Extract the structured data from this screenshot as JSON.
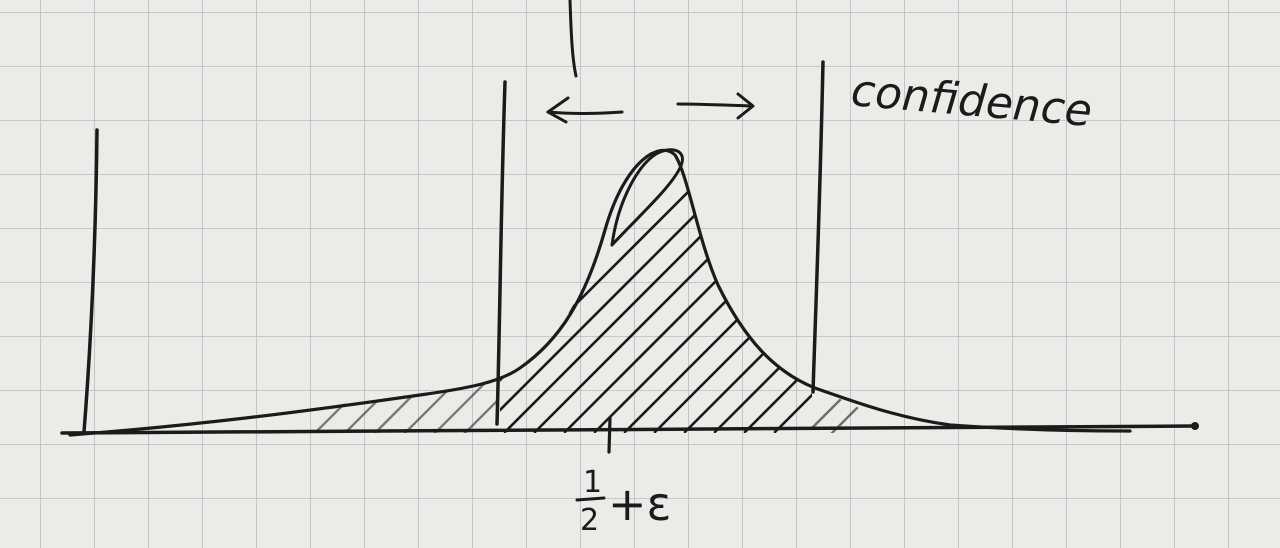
{
  "annotations": {
    "interval_label": "confidence",
    "mean_label": {
      "numerator": "1",
      "denominator": "2",
      "suffix": "+ε"
    }
  },
  "colors": {
    "paper": "#ecebe8",
    "grid": "#b9b9c6",
    "ink": "#1b1b1b"
  }
}
